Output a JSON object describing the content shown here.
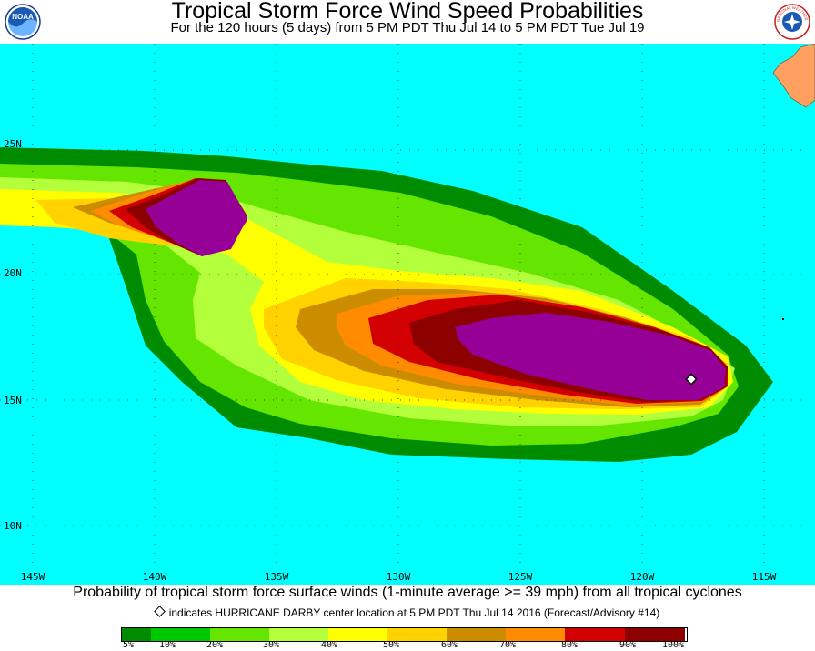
{
  "header": {
    "title": "Tropical Storm Force Wind Speed Probabilities",
    "subtitle": "For the 120 hours (5 days) from 5 PM PDT Thu Jul 14 to 5 PM PDT Tue Jul 19",
    "logo_left": {
      "text": "NOAA",
      "icon": "noaa-logo-icon"
    },
    "logo_right": {
      "text": "NATIONAL WEATHER SERVICE",
      "icon": "nws-logo-icon"
    }
  },
  "map": {
    "ocean_color": "#00ffff",
    "land_color": "#ffa060",
    "latitude_labels": [
      "25N",
      "20N",
      "15N",
      "10N"
    ],
    "longitude_labels": [
      "145W",
      "140W",
      "135W",
      "130W",
      "125W",
      "120W",
      "115W"
    ],
    "storm_marker": {
      "icon": "storm-center-diamond-icon"
    }
  },
  "footer": {
    "description": "Probability of tropical storm force surface winds (1-minute average >= 39 mph) from all tropical cyclones",
    "marker_note": "indicates HURRICANE DARBY center location at 5 PM PDT Thu Jul 14 2016 (Forecast/Advisory #14)"
  },
  "legend": {
    "colors": [
      "#008c00",
      "#00c800",
      "#64e600",
      "#b4ff3c",
      "#ffff00",
      "#ffd200",
      "#cc8c00",
      "#ff8c00",
      "#d20000",
      "#8c0000",
      "#960096"
    ],
    "labels": [
      "5%",
      "10%",
      "20%",
      "30%",
      "40%",
      "50%",
      "60%",
      "70%",
      "80%",
      "90%",
      "100%"
    ]
  }
}
